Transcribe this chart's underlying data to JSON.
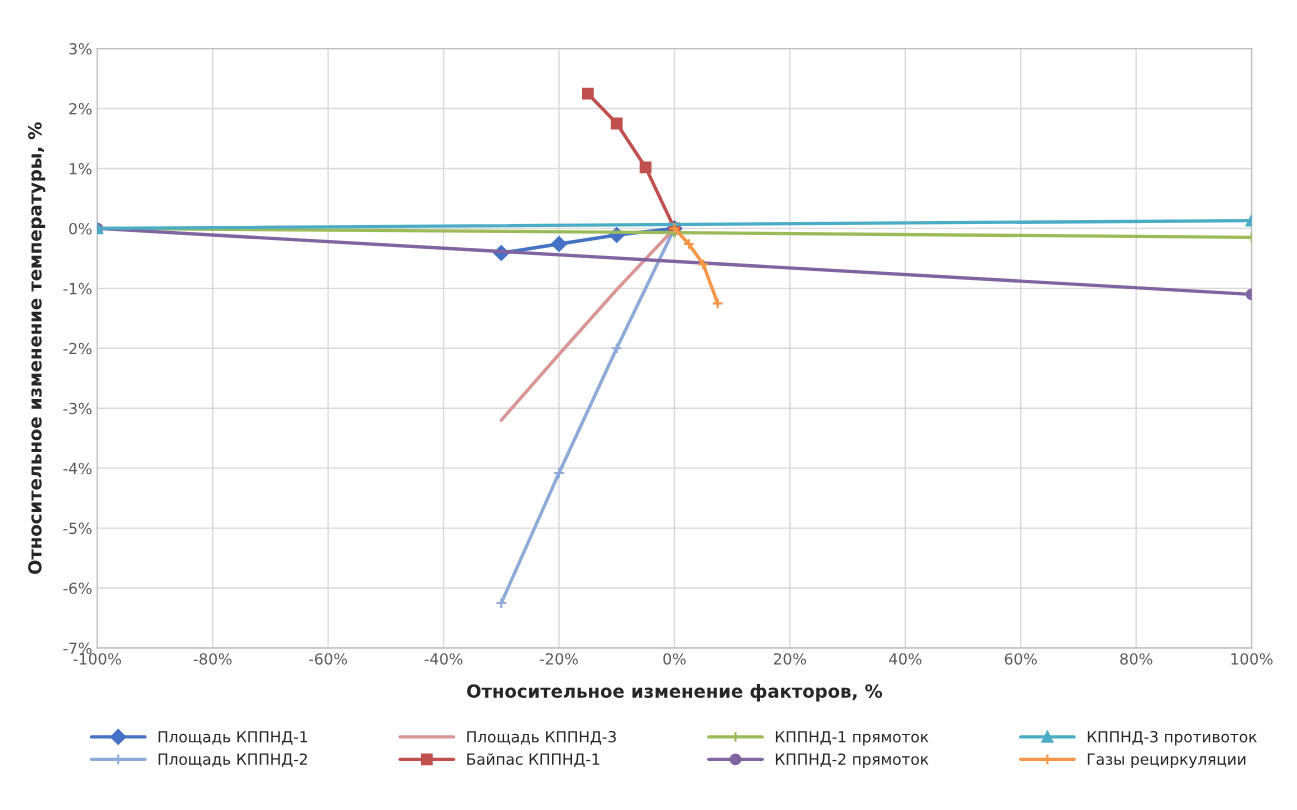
{
  "chart_data": {
    "type": "line",
    "xlabel": "Относительное изменение факторов, %",
    "ylabel": "Относительное изменение температуры, %",
    "xlim": [
      -100,
      100
    ],
    "ylim": [
      -7,
      3
    ],
    "xticks": [
      {
        "value": -100,
        "label": "-100%"
      },
      {
        "value": -80,
        "label": "-80%"
      },
      {
        "value": -60,
        "label": "-60%"
      },
      {
        "value": -40,
        "label": "-40%"
      },
      {
        "value": -20,
        "label": "-20%"
      },
      {
        "value": 0,
        "label": "0%"
      },
      {
        "value": 20,
        "label": "20%"
      },
      {
        "value": 40,
        "label": "40%"
      },
      {
        "value": 60,
        "label": "60%"
      },
      {
        "value": 80,
        "label": "80%"
      },
      {
        "value": 100,
        "label": "100%"
      }
    ],
    "yticks": [
      {
        "value": -7,
        "label": "-7%"
      },
      {
        "value": -6,
        "label": "-6%"
      },
      {
        "value": -5,
        "label": "-5%"
      },
      {
        "value": -4,
        "label": "-4%"
      },
      {
        "value": -3,
        "label": "-3%"
      },
      {
        "value": -2,
        "label": "-2%"
      },
      {
        "value": -1,
        "label": "-1%"
      },
      {
        "value": 0,
        "label": "0%"
      },
      {
        "value": 1,
        "label": "1%"
      },
      {
        "value": 2,
        "label": "2%"
      },
      {
        "value": 3,
        "label": "3%"
      }
    ],
    "grid": true,
    "legend": "bottom",
    "series": [
      {
        "name": "Площадь КППНД-1",
        "color": "#4472c4",
        "marker": "diamond",
        "x": [
          -30,
          -20,
          -10,
          0
        ],
        "values": [
          -0.41,
          -0.26,
          -0.11,
          0
        ]
      },
      {
        "name": "Площадь КППНД-2",
        "color": "#8eaad8",
        "marker": "cross",
        "x": [
          -30,
          -20,
          -10,
          0
        ],
        "values": [
          -6.25,
          -4.08,
          -2.0,
          0
        ]
      },
      {
        "name": "Площадь КППНД-3",
        "color": "#d99594",
        "marker": "none",
        "x": [
          -30,
          -20,
          -10,
          0
        ],
        "values": [
          -3.2,
          -2.1,
          -1.02,
          0
        ]
      },
      {
        "name": "Байпас КППНД-1",
        "color": "#c0504d",
        "marker": "square",
        "x": [
          -15,
          -10,
          -5,
          0
        ],
        "values": [
          2.25,
          1.75,
          1.02,
          0
        ]
      },
      {
        "name": "КППНД-1 прямоток",
        "color": "#9bbb59",
        "marker": "cross",
        "x": [
          -100,
          0,
          100
        ],
        "values": [
          0,
          -0.07,
          -0.15
        ]
      },
      {
        "name": "КППНД-2 прямоток",
        "color": "#8064a2",
        "marker": "circle",
        "x": [
          -100,
          100
        ],
        "values": [
          0,
          -1.1
        ]
      },
      {
        "name": "КППНД-3 противоток",
        "color": "#4bacc6",
        "marker": "triangle",
        "x": [
          -100,
          100
        ],
        "values": [
          0,
          0.13
        ]
      },
      {
        "name": "Газы рециркуляции",
        "color": "#f79646",
        "marker": "cross",
        "x": [
          0,
          2.5,
          5,
          7.5
        ],
        "values": [
          0,
          -0.26,
          -0.6,
          -1.25
        ]
      }
    ]
  }
}
